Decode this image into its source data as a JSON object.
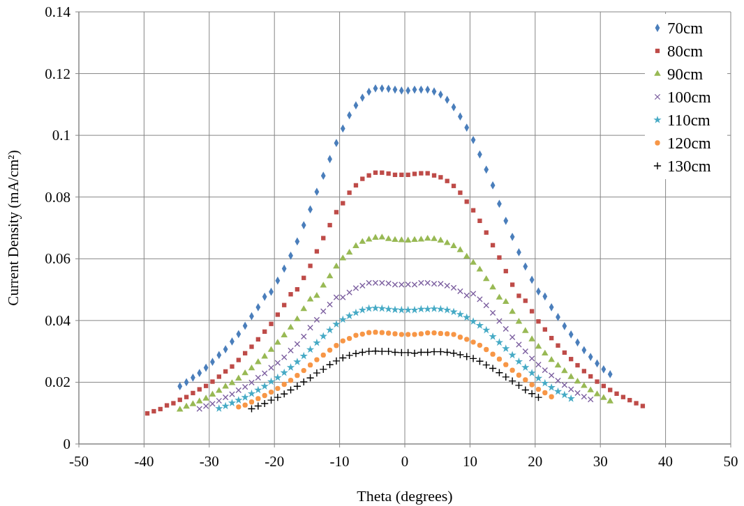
{
  "chart_data": {
    "type": "scatter",
    "xlabel": "Theta (degrees)",
    "ylabel": "Current Density (mA/cm²)",
    "xlim": [
      -50,
      50
    ],
    "ylim": [
      0,
      0.14
    ],
    "xticks": [
      -50,
      -40,
      -30,
      -20,
      -10,
      0,
      10,
      20,
      30,
      40,
      50
    ],
    "yticks": [
      0,
      0.02,
      0.04,
      0.06,
      0.08,
      0.1,
      0.12,
      0.14
    ],
    "grid": true,
    "legend": "top right",
    "series": [
      {
        "name": "70cm",
        "color": "#4a7ebb",
        "marker": "diamond",
        "x": [
          -34.5,
          -33.5,
          -32.5,
          -31.5,
          -30.5,
          -29.5,
          -28.5,
          -27.5,
          -26.5,
          -25.5,
          -24.5,
          -23.5,
          -22.5,
          -21.5,
          -20.5,
          -19.5,
          -18.5,
          -17.5,
          -16.5,
          -15.5,
          -14.5,
          -13.5,
          -12.5,
          -11.5,
          -10.5,
          -9.5,
          -8.5,
          -7.5,
          -6.5,
          -5.5,
          -4.5,
          -3.5,
          -2.5,
          -1.5,
          -0.5,
          0.5,
          1.5,
          2.5,
          3.5,
          4.5,
          5.5,
          6.5,
          7.5,
          8.5,
          9.5,
          10.5,
          11.5,
          12.5,
          13.5,
          14.5,
          15.5,
          16.5,
          17.5,
          18.5,
          19.5,
          20.5,
          21.5,
          22.5,
          23.5,
          24.5,
          25.5,
          26.5,
          27.5,
          28.5,
          29.5,
          30.5,
          31.5
        ],
        "values": [
          0.0187,
          0.02,
          0.0215,
          0.023,
          0.0247,
          0.0266,
          0.0288,
          0.0307,
          0.0332,
          0.0356,
          0.0383,
          0.0414,
          0.0443,
          0.0477,
          0.0493,
          0.0529,
          0.0568,
          0.061,
          0.0656,
          0.0709,
          0.076,
          0.0817,
          0.0869,
          0.0923,
          0.0975,
          0.1022,
          0.1065,
          0.1097,
          0.1122,
          0.1141,
          0.1152,
          0.1152,
          0.1151,
          0.1148,
          0.1145,
          0.1145,
          0.1148,
          0.1148,
          0.1148,
          0.1142,
          0.1132,
          0.1115,
          0.1091,
          0.1061,
          0.1025,
          0.0985,
          0.0938,
          0.0889,
          0.0838,
          0.0778,
          0.0723,
          0.0671,
          0.0621,
          0.0575,
          0.0532,
          0.0494,
          0.0478,
          0.0443,
          0.0411,
          0.0382,
          0.0355,
          0.0329,
          0.0304,
          0.0282,
          0.0261,
          0.0242,
          0.0226
        ]
      },
      {
        "name": "80cm",
        "color": "#be4b48",
        "marker": "square",
        "x": [
          -39.5,
          -38.5,
          -37.5,
          -36.5,
          -35.5,
          -34.5,
          -33.5,
          -32.5,
          -31.5,
          -30.5,
          -29.5,
          -28.5,
          -27.5,
          -26.5,
          -25.5,
          -24.5,
          -23.5,
          -22.5,
          -21.5,
          -20.5,
          -19.5,
          -18.5,
          -17.5,
          -16.5,
          -15.5,
          -14.5,
          -13.5,
          -12.5,
          -11.5,
          -10.5,
          -9.5,
          -8.5,
          -7.5,
          -6.5,
          -5.5,
          -4.5,
          -3.5,
          -2.5,
          -1.5,
          -0.5,
          0.5,
          1.5,
          2.5,
          3.5,
          4.5,
          5.5,
          6.5,
          7.5,
          8.5,
          9.5,
          10.5,
          11.5,
          12.5,
          13.5,
          14.5,
          15.5,
          16.5,
          17.5,
          18.5,
          19.5,
          20.5,
          21.5,
          22.5,
          23.5,
          24.5,
          25.5,
          26.5,
          27.5,
          28.5,
          29.5,
          30.5,
          31.5,
          32.5,
          33.5,
          34.5,
          35.5,
          36.5
        ],
        "values": [
          0.0099,
          0.0106,
          0.0113,
          0.0125,
          0.0132,
          0.0143,
          0.0152,
          0.0165,
          0.0177,
          0.0188,
          0.0202,
          0.0218,
          0.0235,
          0.0251,
          0.0272,
          0.0294,
          0.0315,
          0.0339,
          0.0364,
          0.0389,
          0.0419,
          0.045,
          0.0485,
          0.0501,
          0.0538,
          0.0577,
          0.0624,
          0.0667,
          0.0709,
          0.0751,
          0.078,
          0.0814,
          0.0838,
          0.0859,
          0.087,
          0.0879,
          0.0879,
          0.0876,
          0.0872,
          0.0872,
          0.0872,
          0.0875,
          0.0877,
          0.0877,
          0.087,
          0.0864,
          0.0852,
          0.0836,
          0.0814,
          0.0785,
          0.0757,
          0.0723,
          0.0685,
          0.0644,
          0.0604,
          0.056,
          0.0516,
          0.048,
          0.0464,
          0.043,
          0.0397,
          0.0371,
          0.0343,
          0.0319,
          0.0296,
          0.0275,
          0.0255,
          0.0236,
          0.0219,
          0.0202,
          0.0188,
          0.0175,
          0.0163,
          0.0152,
          0.0142,
          0.0132,
          0.0123
        ]
      },
      {
        "name": "90cm",
        "color": "#98b954",
        "marker": "triangle",
        "x": [
          -34.5,
          -33.5,
          -32.5,
          -31.5,
          -30.5,
          -29.5,
          -28.5,
          -27.5,
          -26.5,
          -25.5,
          -24.5,
          -23.5,
          -22.5,
          -21.5,
          -20.5,
          -19.5,
          -18.5,
          -17.5,
          -16.5,
          -15.5,
          -14.5,
          -13.5,
          -12.5,
          -11.5,
          -10.5,
          -9.5,
          -8.5,
          -7.5,
          -6.5,
          -5.5,
          -4.5,
          -3.5,
          -2.5,
          -1.5,
          -0.5,
          0.5,
          1.5,
          2.5,
          3.5,
          4.5,
          5.5,
          6.5,
          7.5,
          8.5,
          9.5,
          10.5,
          11.5,
          12.5,
          13.5,
          14.5,
          15.5,
          16.5,
          17.5,
          18.5,
          19.5,
          20.5,
          21.5,
          22.5,
          23.5,
          24.5,
          25.5,
          26.5,
          27.5,
          28.5,
          29.5,
          30.5,
          31.5
        ],
        "values": [
          0.0111,
          0.0121,
          0.0129,
          0.0138,
          0.0147,
          0.016,
          0.0172,
          0.0186,
          0.0197,
          0.0212,
          0.0229,
          0.0245,
          0.0265,
          0.0283,
          0.0305,
          0.0328,
          0.0352,
          0.0377,
          0.0404,
          0.0437,
          0.0468,
          0.048,
          0.0513,
          0.0543,
          0.0575,
          0.0601,
          0.062,
          0.0641,
          0.0655,
          0.0662,
          0.0668,
          0.0669,
          0.0664,
          0.0661,
          0.066,
          0.0659,
          0.0661,
          0.0662,
          0.0665,
          0.0664,
          0.0659,
          0.0651,
          0.0641,
          0.0628,
          0.0607,
          0.0587,
          0.0565,
          0.0534,
          0.0507,
          0.0474,
          0.046,
          0.0428,
          0.0396,
          0.0366,
          0.0339,
          0.0315,
          0.0293,
          0.0272,
          0.0254,
          0.0236,
          0.0217,
          0.0202,
          0.0188,
          0.0174,
          0.0161,
          0.0149,
          0.0138
        ]
      },
      {
        "name": "100cm",
        "color": "#7d60a0",
        "marker": "cross",
        "x": [
          -31.5,
          -30.5,
          -29.5,
          -28.5,
          -27.5,
          -26.5,
          -25.5,
          -24.5,
          -23.5,
          -22.5,
          -21.5,
          -20.5,
          -19.5,
          -18.5,
          -17.5,
          -16.5,
          -15.5,
          -14.5,
          -13.5,
          -12.5,
          -11.5,
          -10.5,
          -9.5,
          -8.5,
          -7.5,
          -6.5,
          -5.5,
          -4.5,
          -3.5,
          -2.5,
          -1.5,
          -0.5,
          0.5,
          1.5,
          2.5,
          3.5,
          4.5,
          5.5,
          6.5,
          7.5,
          8.5,
          9.5,
          10.5,
          11.5,
          12.5,
          13.5,
          14.5,
          15.5,
          16.5,
          17.5,
          18.5,
          19.5,
          20.5,
          21.5,
          22.5,
          23.5,
          24.5,
          25.5,
          26.5,
          27.5,
          28.5
        ],
        "values": [
          0.0114,
          0.0123,
          0.013,
          0.014,
          0.0151,
          0.0161,
          0.0174,
          0.0185,
          0.0199,
          0.0215,
          0.0229,
          0.0247,
          0.0263,
          0.0281,
          0.0303,
          0.0324,
          0.0348,
          0.0377,
          0.0402,
          0.043,
          0.0452,
          0.0475,
          0.0475,
          0.0491,
          0.0505,
          0.0513,
          0.0522,
          0.0522,
          0.0522,
          0.052,
          0.0516,
          0.0516,
          0.0517,
          0.0516,
          0.0522,
          0.0522,
          0.0519,
          0.0519,
          0.0513,
          0.0506,
          0.0495,
          0.0481,
          0.0487,
          0.0469,
          0.0449,
          0.0425,
          0.0398,
          0.0373,
          0.0346,
          0.0322,
          0.03,
          0.0277,
          0.0257,
          0.0239,
          0.0222,
          0.0205,
          0.0191,
          0.0177,
          0.0165,
          0.0153,
          0.0144
        ]
      },
      {
        "name": "110cm",
        "color": "#46aac5",
        "marker": "star",
        "x": [
          -28.5,
          -27.5,
          -26.5,
          -25.5,
          -24.5,
          -23.5,
          -22.5,
          -21.5,
          -20.5,
          -19.5,
          -18.5,
          -17.5,
          -16.5,
          -15.5,
          -14.5,
          -13.5,
          -12.5,
          -11.5,
          -10.5,
          -9.5,
          -8.5,
          -7.5,
          -6.5,
          -5.5,
          -4.5,
          -3.5,
          -2.5,
          -1.5,
          -0.5,
          0.5,
          1.5,
          2.5,
          3.5,
          4.5,
          5.5,
          6.5,
          7.5,
          8.5,
          9.5,
          10.5,
          11.5,
          12.5,
          13.5,
          14.5,
          15.5,
          16.5,
          17.5,
          18.5,
          19.5,
          20.5,
          21.5,
          22.5,
          23.5,
          24.5,
          25.5
        ],
        "values": [
          0.0115,
          0.0123,
          0.0133,
          0.0142,
          0.0151,
          0.0163,
          0.0175,
          0.0187,
          0.0202,
          0.0215,
          0.0231,
          0.0248,
          0.0266,
          0.0285,
          0.0306,
          0.0328,
          0.0349,
          0.0369,
          0.0388,
          0.0403,
          0.0415,
          0.0425,
          0.0434,
          0.0439,
          0.044,
          0.0439,
          0.0437,
          0.0435,
          0.0434,
          0.0434,
          0.0434,
          0.0437,
          0.0437,
          0.0438,
          0.0437,
          0.0434,
          0.0428,
          0.042,
          0.041,
          0.0397,
          0.0384,
          0.0369,
          0.0348,
          0.0329,
          0.0309,
          0.0288,
          0.0267,
          0.0248,
          0.023,
          0.0213,
          0.0197,
          0.0183,
          0.017,
          0.0159,
          0.0147
        ]
      },
      {
        "name": "120cm",
        "color": "#f79646",
        "marker": "circle",
        "x": [
          -25.5,
          -24.5,
          -23.5,
          -22.5,
          -21.5,
          -20.5,
          -19.5,
          -18.5,
          -17.5,
          -16.5,
          -15.5,
          -14.5,
          -13.5,
          -12.5,
          -11.5,
          -10.5,
          -9.5,
          -8.5,
          -7.5,
          -6.5,
          -5.5,
          -4.5,
          -3.5,
          -2.5,
          -1.5,
          -0.5,
          0.5,
          1.5,
          2.5,
          3.5,
          4.5,
          5.5,
          6.5,
          7.5,
          8.5,
          9.5,
          10.5,
          11.5,
          12.5,
          13.5,
          14.5,
          15.5,
          16.5,
          17.5,
          18.5,
          19.5,
          20.5,
          21.5,
          22.5
        ],
        "values": [
          0.012,
          0.0126,
          0.0136,
          0.0147,
          0.0157,
          0.0168,
          0.018,
          0.0193,
          0.0206,
          0.0222,
          0.0238,
          0.0256,
          0.0273,
          0.0288,
          0.0304,
          0.0319,
          0.0334,
          0.0342,
          0.0352,
          0.0356,
          0.0361,
          0.0362,
          0.0361,
          0.0359,
          0.0357,
          0.0355,
          0.0355,
          0.0355,
          0.0357,
          0.036,
          0.036,
          0.0358,
          0.0357,
          0.0355,
          0.0346,
          0.0339,
          0.033,
          0.032,
          0.0306,
          0.0291,
          0.0275,
          0.0257,
          0.0239,
          0.0223,
          0.0208,
          0.0192,
          0.0177,
          0.0166,
          0.0153
        ]
      },
      {
        "name": "130cm",
        "color": "#000000",
        "marker": "plus",
        "x": [
          -23.5,
          -22.5,
          -21.5,
          -20.5,
          -19.5,
          -18.5,
          -17.5,
          -16.5,
          -15.5,
          -14.5,
          -13.5,
          -12.5,
          -11.5,
          -10.5,
          -9.5,
          -8.5,
          -7.5,
          -6.5,
          -5.5,
          -4.5,
          -3.5,
          -2.5,
          -1.5,
          -0.5,
          0.5,
          1.5,
          2.5,
          3.5,
          4.5,
          5.5,
          6.5,
          7.5,
          8.5,
          9.5,
          10.5,
          11.5,
          12.5,
          13.5,
          14.5,
          15.5,
          16.5,
          17.5,
          18.5,
          19.5,
          20.5
        ],
        "values": [
          0.0114,
          0.0123,
          0.0131,
          0.0142,
          0.0151,
          0.0162,
          0.0175,
          0.0187,
          0.0201,
          0.0214,
          0.023,
          0.0242,
          0.0257,
          0.0269,
          0.0279,
          0.0287,
          0.0293,
          0.0297,
          0.03,
          0.0301,
          0.03,
          0.03,
          0.0297,
          0.0296,
          0.0296,
          0.0294,
          0.0297,
          0.0297,
          0.0299,
          0.0299,
          0.0297,
          0.0294,
          0.0289,
          0.0283,
          0.0277,
          0.0268,
          0.0256,
          0.0245,
          0.0231,
          0.0217,
          0.0204,
          0.019,
          0.0175,
          0.0163,
          0.0151
        ]
      }
    ]
  }
}
